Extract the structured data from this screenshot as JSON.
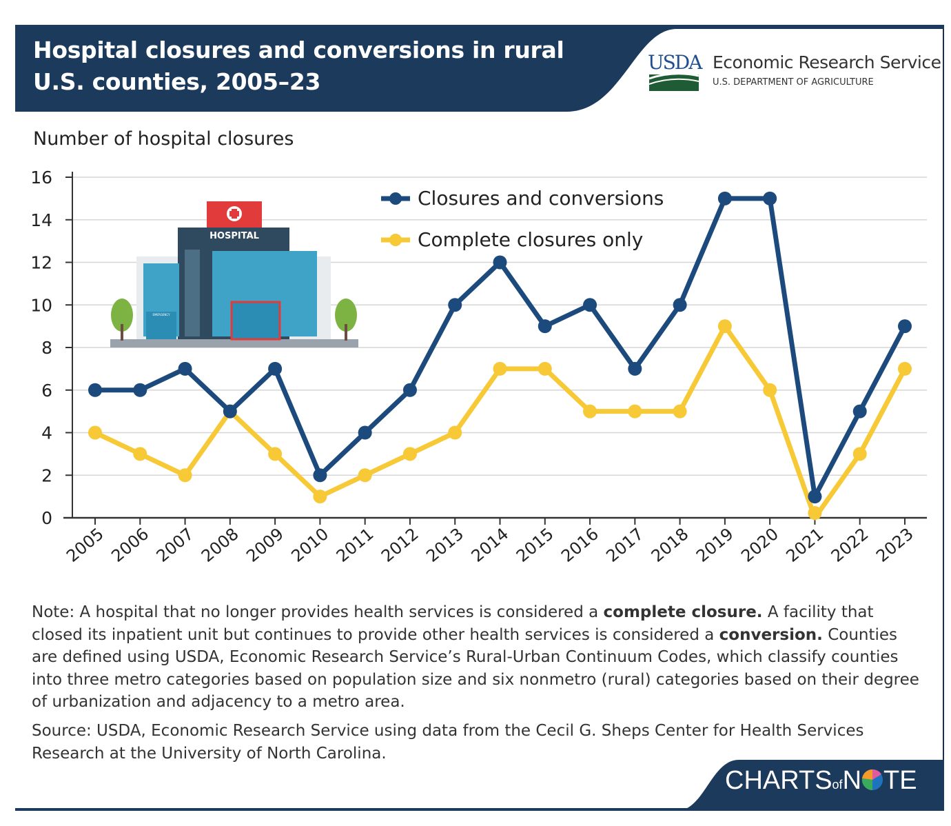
{
  "header": {
    "title_line1": "Hospital closures and conversions in rural",
    "title_line2": "U.S. counties, 2005–23",
    "logo_usda": "USDA",
    "logo_agency": "Economic Research Service",
    "logo_department": "U.S. DEPARTMENT OF AGRICULTURE",
    "header_color": "#1b3a5c"
  },
  "illustration": {
    "sign_text": "HOSPITAL",
    "small_sign": "EMERGENCY"
  },
  "chart_data": {
    "type": "line",
    "title": "Hospital closures and conversions in rural U.S. counties, 2005–23",
    "ylabel": "Number of hospital closures",
    "xlabel": "",
    "ylim": [
      0,
      16
    ],
    "yticks": [
      0,
      2,
      4,
      6,
      8,
      10,
      12,
      14,
      16
    ],
    "grid": "horizontal",
    "legend_position": "top-center",
    "x": [
      "2005",
      "2006",
      "2007",
      "2008",
      "2009",
      "2010",
      "2011",
      "2012",
      "2013",
      "2014",
      "2015",
      "2016",
      "2017",
      "2018",
      "2019",
      "2020",
      "2021",
      "2022",
      "2023"
    ],
    "series": [
      {
        "name": "Closures and conversions",
        "color": "#1d4a7d",
        "values": [
          6,
          6,
          7,
          5,
          7,
          2,
          4,
          6,
          10,
          12,
          9,
          10,
          7,
          10,
          15,
          15,
          1,
          5,
          9
        ]
      },
      {
        "name": "Complete closures only",
        "color": "#f7c936",
        "values": [
          4,
          3,
          2,
          5,
          3,
          1,
          2,
          3,
          4,
          7,
          7,
          5,
          5,
          5,
          9,
          6,
          0,
          3,
          7
        ]
      }
    ]
  },
  "note": {
    "prefix": "Note: A hospital that no longer provides health services is considered a ",
    "bold1": "complete closure.",
    "mid": " A facility that closed its inpatient unit but continues to provide other health services is considered a ",
    "bold2": "conversion.",
    "suffix": " Counties are defined using USDA, Economic Research Service’s Rural-Urban Continuum Codes, which classify counties into three metro categories based on population size and six nonmetro (rural) categories based on their degree of urbanization and adjacency to a metro area."
  },
  "source": "Source: USDA, Economic Research Service using data from the Cecil G. Sheps Center for Health Services Research at the University of North Carolina.",
  "footer": {
    "brand_charts": "CHARTS",
    "brand_of": "of",
    "brand_n": "N",
    "brand_te": "TE"
  }
}
